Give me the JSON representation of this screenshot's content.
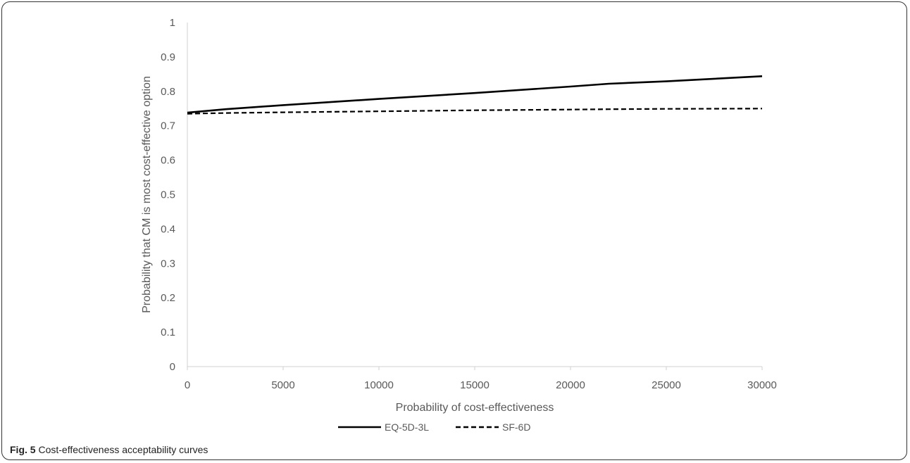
{
  "figure": {
    "caption_label": "Fig. 5",
    "caption_text": "Cost-effectiveness acceptability curves"
  },
  "chart_data": {
    "type": "line",
    "title": "",
    "xlabel": "Probability of cost-effectiveness",
    "ylabel": "Probability that CM is most cost-effective option",
    "xlim": [
      0,
      30000
    ],
    "ylim": [
      0,
      1
    ],
    "x_ticks": [
      0,
      5000,
      10000,
      15000,
      20000,
      25000,
      30000
    ],
    "y_ticks": [
      0,
      0.1,
      0.2,
      0.3,
      0.4,
      0.5,
      0.6,
      0.7,
      0.8,
      0.9,
      1
    ],
    "grid": false,
    "legend_position": "bottom",
    "x": [
      0,
      2000,
      5000,
      10000,
      15000,
      20000,
      22000,
      25000,
      30000
    ],
    "series": [
      {
        "name": "EQ-5D-3L",
        "style": "solid",
        "color": "#000000",
        "values": [
          0.738,
          0.748,
          0.76,
          0.778,
          0.795,
          0.814,
          0.822,
          0.829,
          0.844
        ]
      },
      {
        "name": "SF-6D",
        "style": "dashed",
        "color": "#000000",
        "values": [
          0.735,
          0.737,
          0.739,
          0.742,
          0.745,
          0.747,
          0.748,
          0.749,
          0.75
        ]
      }
    ]
  }
}
